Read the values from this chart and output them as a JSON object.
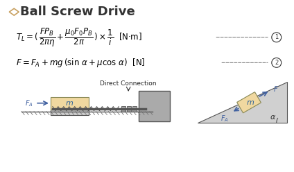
{
  "title": "Ball Screw Drive",
  "formula1": "$T_L = (\\dfrac{FP_B}{2\\pi\\eta} + \\dfrac{\\mu_0 F_0 P_B}{2\\pi}) \\times \\dfrac{1}{i}$ [N·m]",
  "formula2": "$F = F_A + mg\\,(\\sin\\,\\alpha + \\mu\\cos\\,\\alpha)$ [N]",
  "direct_connection": "Direct Connection",
  "bg_color": "#ffffff",
  "title_color": "#333333",
  "formula_color": "#000000",
  "diamond_color": "#c8a060",
  "box_color": "#f0d8a0",
  "machine_color": "#c0c0c0",
  "arrow_color": "#4060a0",
  "label_color": "#4060a0",
  "dashed_color": "#808080"
}
